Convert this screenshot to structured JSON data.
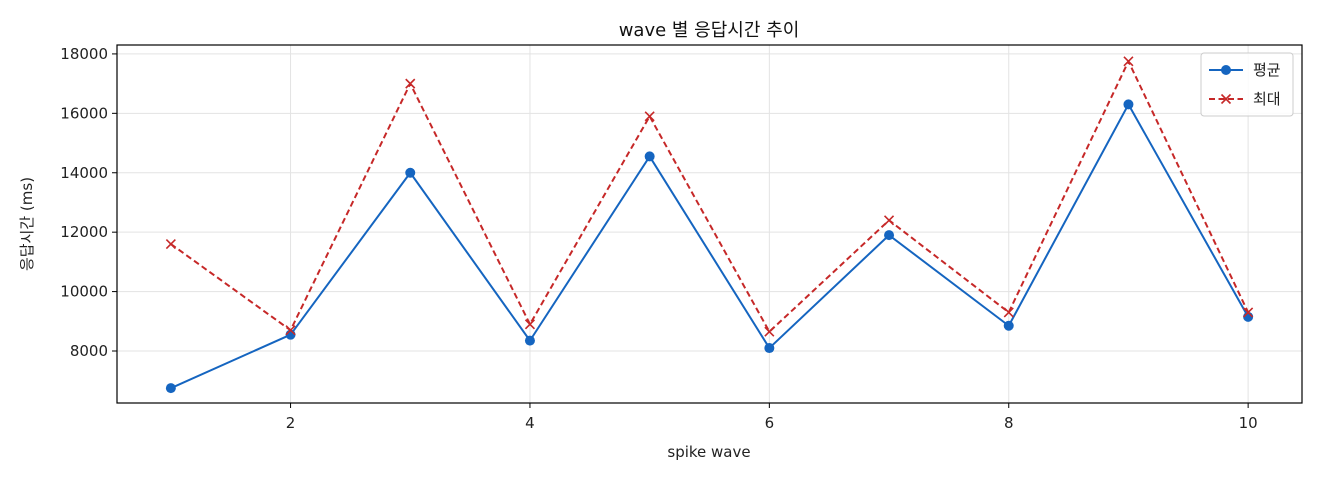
{
  "chart_data": {
    "type": "line",
    "title": "wave 별 응답시간 추이",
    "xlabel": "spike wave",
    "ylabel": "응답시간 (ms)",
    "x": [
      1,
      2,
      3,
      4,
      5,
      6,
      7,
      8,
      9,
      10
    ],
    "xlim": [
      0.55,
      10.45
    ],
    "ylim": [
      6250,
      18300
    ],
    "xticks": [
      2,
      4,
      6,
      8,
      10
    ],
    "yticks": [
      8000,
      10000,
      12000,
      14000,
      16000,
      18000
    ],
    "grid": true,
    "legend_position": "top-right",
    "series": [
      {
        "name": "평균",
        "values": [
          6750,
          8550,
          14000,
          8350,
          14550,
          8100,
          11900,
          8850,
          16300,
          9150
        ],
        "color": "#1565c0",
        "line_style": "solid",
        "marker": "circle"
      },
      {
        "name": "최대",
        "values": [
          11600,
          8700,
          17000,
          8900,
          15900,
          8650,
          12400,
          9300,
          17750,
          9300
        ],
        "color": "#c62828",
        "line_style": "dashed",
        "marker": "x"
      }
    ]
  }
}
